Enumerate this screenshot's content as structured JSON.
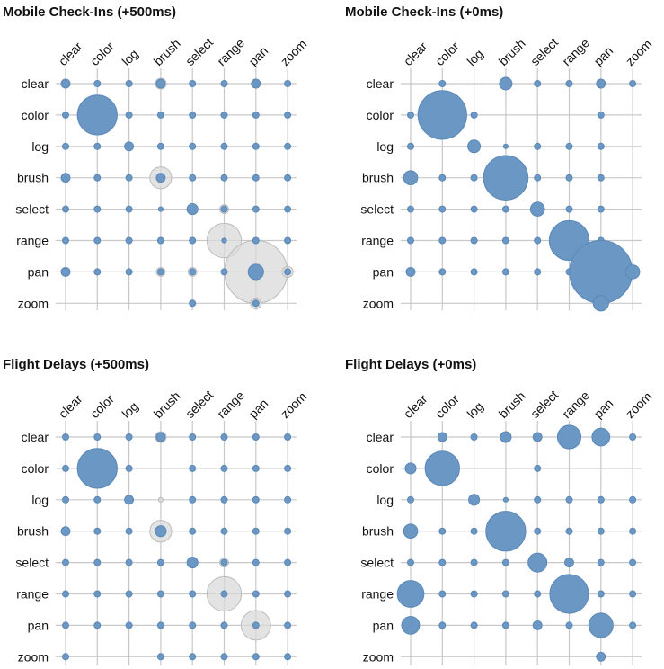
{
  "figure": {
    "colors": {
      "primary": "#6a97c4",
      "primary_stroke": "#5c88b6",
      "secondary": "#d9d9d9",
      "secondary_stroke": "#bdbdbd",
      "grid": "#c8c8c8"
    }
  },
  "chart_data": [
    {
      "type": "scatter",
      "title": "Mobile Check-Ins (+500ms)",
      "categories": [
        "clear",
        "color",
        "log",
        "brush",
        "select",
        "range",
        "pan",
        "zoom"
      ],
      "row_categories": [
        "clear",
        "color",
        "log",
        "brush",
        "select",
        "range",
        "pan",
        "zoom"
      ],
      "series": [
        {
          "values": [
            [
              2,
              1,
              1,
              2,
              1,
              1,
              2,
              1
            ],
            [
              1,
              40,
              1,
              1,
              1,
              1,
              1,
              1
            ],
            [
              1,
              1,
              2,
              1,
              1,
              1,
              1,
              1
            ],
            [
              2,
              1,
              1,
              2,
              1,
              1,
              1,
              1
            ],
            [
              1,
              1,
              1,
              0.5,
              3,
              1,
              1,
              1
            ],
            [
              1,
              1,
              1,
              1,
              1,
              0.5,
              1,
              1
            ],
            [
              2,
              1,
              1,
              1,
              1,
              1,
              6,
              1
            ],
            [
              0,
              0,
              0,
              0,
              1,
              0,
              1,
              0
            ]
          ]
        },
        {
          "values": [
            [
              0,
              0,
              0,
              3,
              0,
              0,
              0,
              0
            ],
            [
              0,
              0,
              0,
              0,
              0,
              0,
              0,
              0
            ],
            [
              0,
              0,
              0,
              0,
              0,
              0,
              0,
              0
            ],
            [
              0,
              0,
              0,
              12,
              0,
              0,
              0,
              0
            ],
            [
              0,
              0,
              0,
              0,
              0,
              2,
              0,
              0
            ],
            [
              0,
              0,
              0,
              0,
              0,
              30,
              0,
              0
            ],
            [
              0,
              0,
              0,
              2,
              2,
              0,
              100,
              3
            ],
            [
              0,
              0,
              0,
              0,
              0,
              0,
              3,
              0
            ]
          ]
        }
      ]
    },
    {
      "type": "scatter",
      "title": "Mobile Check-Ins (+0ms)",
      "categories": [
        "clear",
        "color",
        "log",
        "brush",
        "select",
        "range",
        "pan",
        "zoom"
      ],
      "row_categories": [
        "clear",
        "color",
        "log",
        "brush",
        "select",
        "range",
        "pan",
        "zoom"
      ],
      "series": [
        {
          "values": [
            [
              0,
              1,
              0,
              4,
              1,
              1,
              2,
              1
            ],
            [
              1,
              60,
              1,
              0,
              0,
              0,
              1,
              0
            ],
            [
              1,
              0,
              4,
              0.5,
              1,
              1,
              1,
              0
            ],
            [
              5,
              1,
              1,
              50,
              1,
              1,
              1,
              0
            ],
            [
              1,
              1,
              1,
              1,
              5,
              1,
              1,
              0
            ],
            [
              1,
              1,
              1,
              1,
              1,
              40,
              1,
              0
            ],
            [
              2,
              1,
              1,
              1,
              1,
              1,
              100,
              5
            ],
            [
              0,
              0,
              0,
              0,
              0,
              0,
              6,
              0
            ]
          ]
        },
        {
          "values": [
            [
              0,
              0,
              0,
              0,
              0,
              0,
              0,
              0
            ],
            [
              0,
              0,
              0,
              0,
              0,
              0,
              0,
              0
            ],
            [
              0,
              0,
              0,
              0,
              0,
              0,
              0,
              0
            ],
            [
              0,
              0,
              0,
              0,
              0,
              0,
              0,
              0
            ],
            [
              0,
              0,
              0,
              0,
              0,
              0,
              0,
              0
            ],
            [
              0,
              0,
              0,
              0,
              0,
              0,
              0,
              0
            ],
            [
              0,
              0,
              0,
              0,
              0,
              0,
              0,
              0
            ],
            [
              0,
              0,
              0,
              0,
              0,
              0,
              0,
              0
            ]
          ]
        }
      ]
    },
    {
      "type": "scatter",
      "title": "Flight Delays (+500ms)",
      "categories": [
        "clear",
        "color",
        "log",
        "brush",
        "select",
        "range",
        "pan",
        "zoom"
      ],
      "row_categories": [
        "clear",
        "color",
        "log",
        "brush",
        "select",
        "range",
        "pan",
        "zoom"
      ],
      "series": [
        {
          "values": [
            [
              1,
              1,
              1,
              2,
              1,
              1,
              1,
              1
            ],
            [
              1,
              40,
              1,
              0,
              1,
              1,
              1,
              1
            ],
            [
              1,
              1,
              2,
              0,
              1,
              1,
              1,
              1
            ],
            [
              2,
              1,
              1,
              3,
              1,
              1,
              1,
              1
            ],
            [
              1,
              1,
              1,
              1,
              3,
              1,
              1,
              1
            ],
            [
              1,
              1,
              1,
              1,
              1,
              1,
              1,
              1
            ],
            [
              1,
              1,
              1,
              1,
              1,
              1,
              1,
              1
            ],
            [
              1,
              0,
              0,
              1,
              1,
              1,
              1,
              1
            ]
          ]
        },
        {
          "values": [
            [
              0,
              0,
              0,
              3,
              0,
              0,
              0,
              0
            ],
            [
              0,
              0,
              0,
              0,
              0,
              0,
              0,
              0
            ],
            [
              0,
              0,
              0,
              0.5,
              0,
              0,
              0,
              0
            ],
            [
              0,
              0,
              0,
              12,
              0,
              0,
              0,
              0
            ],
            [
              0,
              0,
              0,
              0,
              0,
              2,
              0,
              0
            ],
            [
              0,
              0,
              0,
              0,
              0,
              30,
              0,
              0
            ],
            [
              0,
              0,
              0,
              0,
              0,
              0,
              22,
              0
            ],
            [
              0,
              0,
              0,
              0,
              0,
              0,
              0,
              0
            ]
          ]
        }
      ]
    },
    {
      "type": "scatter",
      "title": "Flight Delays (+0ms)",
      "categories": [
        "clear",
        "color",
        "log",
        "brush",
        "select",
        "range",
        "pan",
        "zoom"
      ],
      "row_categories": [
        "clear",
        "color",
        "log",
        "brush",
        "select",
        "range",
        "pan",
        "zoom"
      ],
      "series": [
        {
          "values": [
            [
              0,
              2,
              1,
              3,
              2,
              14,
              8,
              1
            ],
            [
              3,
              30,
              0,
              0,
              1,
              0,
              0,
              0
            ],
            [
              1,
              0,
              3,
              0.5,
              1,
              1,
              1,
              1
            ],
            [
              5,
              1,
              1,
              40,
              1,
              1,
              1,
              1
            ],
            [
              1,
              1,
              1,
              1,
              9,
              2,
              1,
              1
            ],
            [
              18,
              1,
              1,
              1,
              1,
              38,
              1,
              1
            ],
            [
              8,
              1,
              1,
              1,
              2,
              1,
              15,
              1
            ],
            [
              0,
              0,
              0,
              0,
              0,
              0,
              2,
              0
            ]
          ]
        },
        {
          "values": [
            [
              0,
              0,
              0,
              0,
              0,
              0,
              0,
              0
            ],
            [
              0,
              0,
              0,
              0,
              0,
              0,
              0,
              0
            ],
            [
              0,
              0,
              0,
              0,
              0,
              0,
              0,
              0
            ],
            [
              0,
              0,
              0,
              0,
              0,
              0,
              0,
              0
            ],
            [
              0,
              0,
              0,
              0,
              0,
              0,
              0,
              0
            ],
            [
              0,
              0,
              0,
              0,
              0,
              0,
              0,
              0
            ],
            [
              0,
              0,
              0,
              0,
              0,
              0,
              0,
              0
            ],
            [
              0,
              0,
              0,
              0,
              0,
              0,
              0,
              0
            ]
          ]
        }
      ]
    }
  ]
}
